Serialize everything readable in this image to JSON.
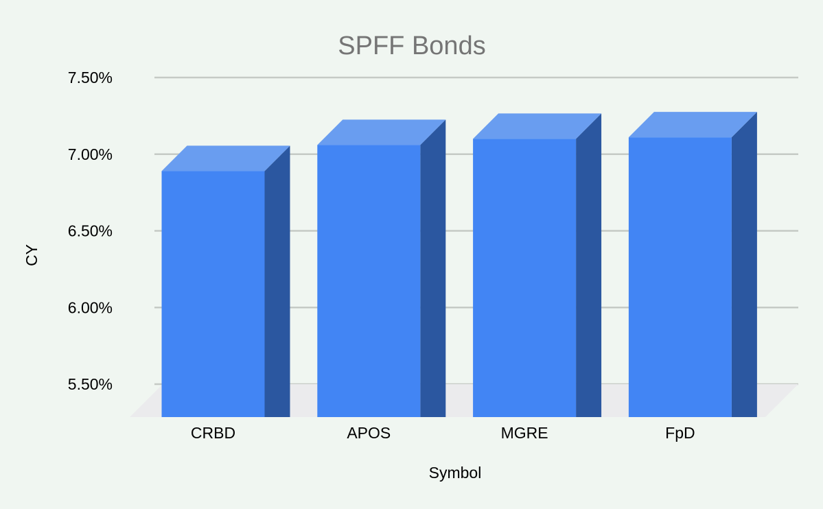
{
  "chart_data": {
    "type": "bar",
    "projection": "3d",
    "title": "SPFF Bonds",
    "xlabel": "Symbol",
    "ylabel": "CY",
    "categories": [
      "CRBD",
      "APOS",
      "MGRE",
      "FpD"
    ],
    "values": [
      6.89,
      7.06,
      7.1,
      7.11
    ],
    "value_format": "percent",
    "ylim": [
      5.5,
      7.5
    ],
    "yticks": [
      5.5,
      6.0,
      6.5,
      7.0,
      7.5
    ],
    "ytick_labels": [
      "5.50%",
      "6.00%",
      "6.50%",
      "7.00%",
      "7.50%"
    ],
    "grid": true,
    "legend": "none",
    "colors": {
      "bar_front": "#4285f4",
      "bar_top": "#699df0",
      "bar_side": "#2b57a0",
      "background": "#f0f6f1",
      "floor": "#ebebed",
      "gridline": "#c5cac5",
      "title_text": "#757575",
      "axis_text": "#000000"
    }
  }
}
